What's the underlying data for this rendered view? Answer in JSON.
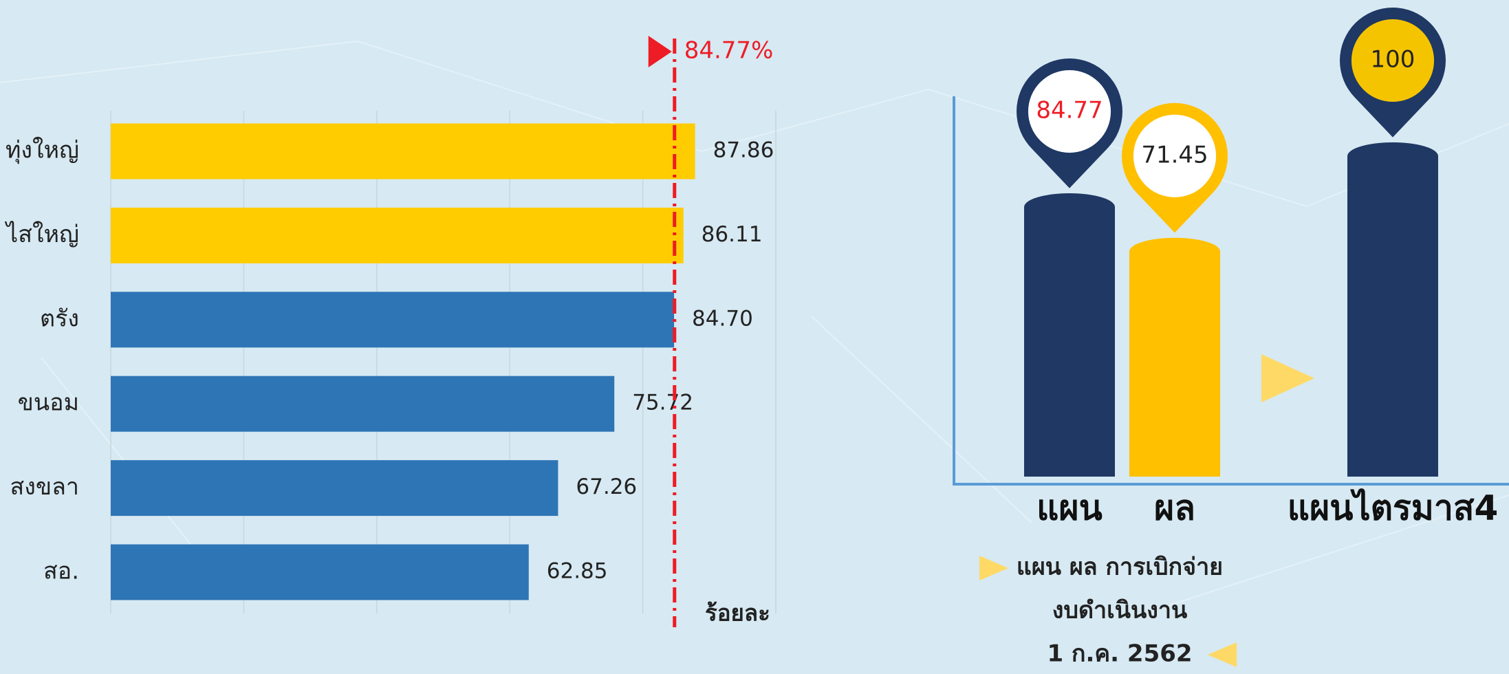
{
  "chart_data": [
    {
      "type": "hbar",
      "categories": [
        "ทุ่งใหญ่",
        "ไสใหญ่",
        "ตรัง",
        "ขนอม",
        "สงขลา",
        "สอ."
      ],
      "values": [
        87.86,
        86.11,
        84.7,
        75.72,
        67.26,
        62.85
      ],
      "value_labels": [
        "87.86",
        "86.11",
        "84.70",
        "75.72",
        "67.26",
        "62.85"
      ],
      "colors": [
        "#ffcc00",
        "#ffcc00",
        "#2e75b6",
        "#2e75b6",
        "#2e75b6",
        "#2e75b6"
      ],
      "xlim": [
        0,
        100
      ],
      "xticks": [
        0,
        20,
        40,
        60,
        80,
        100
      ],
      "grid": true,
      "x_label": "ร้อยละ",
      "reference_line": {
        "value": 84.77,
        "label": "84.77%",
        "color": "#ee1c25"
      }
    },
    {
      "type": "column",
      "categories": [
        "แผน",
        "ผล",
        "แผนไตรมาส4"
      ],
      "values": [
        84.77,
        71.45,
        100
      ],
      "colors": [
        "#1f3864",
        "#ffc000",
        "#1f3864"
      ],
      "label_colors": [
        "#ee1c25",
        "#222222",
        "#222222"
      ],
      "label_fills": [
        "#ffffff",
        "#ffffff",
        "#f5c400"
      ],
      "ylim": [
        0,
        100
      ],
      "caption": [
        "แผน ผล การเบิกจ่าย",
        "งบดำเนินงาน",
        "1 ก.ค. 2562"
      ]
    }
  ]
}
